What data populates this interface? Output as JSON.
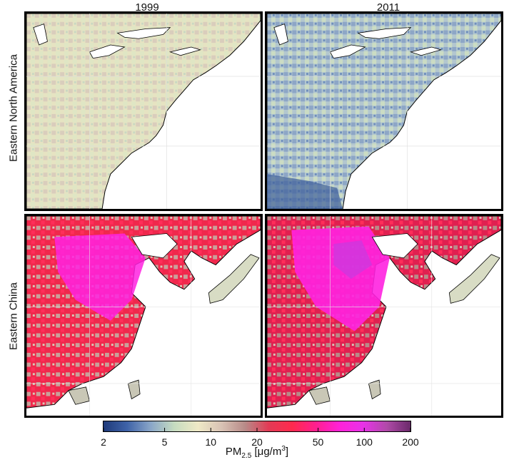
{
  "columns": [
    "1999",
    "2011"
  ],
  "rows": [
    "Eastern North America",
    "Eastern China"
  ],
  "colorbar": {
    "variable_main": "PM",
    "variable_sub": "2.5",
    "unit_open": " [",
    "unit_base": "μg/m",
    "unit_sup": "3",
    "unit_close": "]",
    "scale": "log",
    "range": [
      2,
      200
    ],
    "tick_values": [
      2,
      5,
      10,
      20,
      50,
      100,
      200
    ],
    "tick_labels": [
      "2",
      "5",
      "10",
      "20",
      "50",
      "100",
      "200"
    ],
    "colors": [
      "#1f3a7a",
      "#3f63a8",
      "#8aa6c8",
      "#c6dcc0",
      "#efe9c6",
      "#d8c2b4",
      "#b88a88",
      "#e23a55",
      "#ff2a4e",
      "#ff1f8f",
      "#ff22d8",
      "#e832e8",
      "#b04aa8",
      "#6a2a6a"
    ]
  },
  "legend_colors": {
    "coast": "#000000",
    "ocean": "#ffffff"
  }
}
